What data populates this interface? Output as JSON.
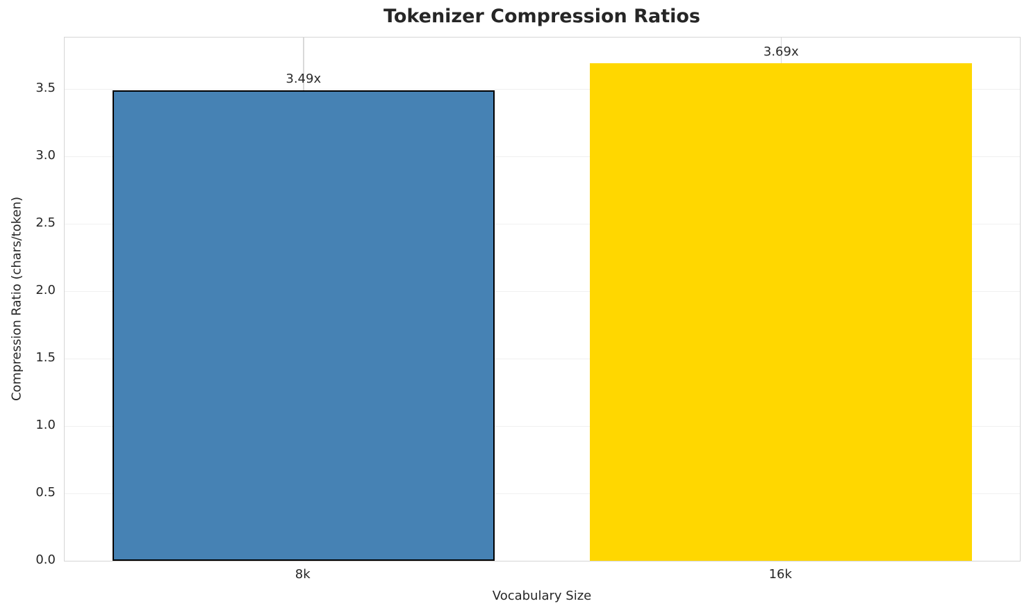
{
  "title": "Tokenizer Compression Ratios",
  "axes": {
    "x_label": "Vocabulary Size",
    "y_label": "Compression Ratio (chars/token)",
    "y_tick_labels": [
      "0.0",
      "0.5",
      "1.0",
      "1.5",
      "2.0",
      "2.5",
      "3.0",
      "3.5"
    ],
    "y_tick_values": [
      0,
      0.5,
      1.0,
      1.5,
      2.0,
      2.5,
      3.0,
      3.5
    ]
  },
  "chart_data": {
    "type": "bar",
    "title": "Tokenizer Compression Ratios",
    "xlabel": "Vocabulary Size",
    "ylabel": "Compression Ratio (chars/token)",
    "categories": [
      "8k",
      "16k"
    ],
    "values": [
      3.49,
      3.69
    ],
    "value_labels": [
      "3.49x",
      "3.69x"
    ],
    "bar_colors": [
      "#4682b4",
      "#ffd700"
    ],
    "bar_edge_colors": [
      "#000000",
      "none"
    ],
    "ylim": [
      0,
      3.88
    ],
    "bar_width_frac": 0.8,
    "grid": true,
    "legend": "none"
  },
  "colors": {
    "accent_blue": "#4682b4",
    "accent_gold": "#ffd700",
    "text": "#262626",
    "grid_horizontal": "#f0f0f0",
    "grid_vertical": "#d9d9d9",
    "spine": "#d5d5d5"
  }
}
